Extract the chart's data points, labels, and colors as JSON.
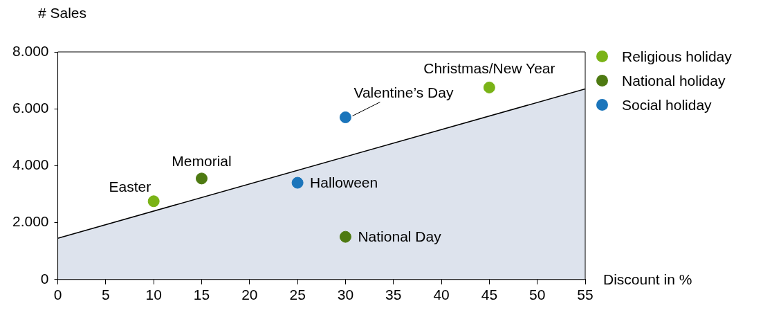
{
  "chart_data": {
    "type": "scatter",
    "xlabel": "Discount in %",
    "ylabel": "# Sales",
    "xlim": [
      0,
      55
    ],
    "xticks": [
      0,
      5,
      10,
      15,
      20,
      25,
      30,
      35,
      40,
      45,
      50,
      55
    ],
    "ylim": [
      0,
      8000
    ],
    "yticks": [
      {
        "value": 0,
        "label": "0"
      },
      {
        "value": 2000,
        "label": "2.000"
      },
      {
        "value": 4000,
        "label": "4.000"
      },
      {
        "value": 6000,
        "label": "6.000"
      },
      {
        "value": 8000,
        "label": "8.000"
      }
    ],
    "grid": false,
    "legend": "top right",
    "marker": "circle",
    "series": [
      {
        "type": "area",
        "marker": "none",
        "color": "#dde3ed",
        "x": [
          0,
          55
        ],
        "values": [
          1450,
          6700
        ]
      },
      {
        "name": "Religious holiday",
        "color": "#7ab317",
        "x": [
          10,
          45
        ],
        "values": [
          2750,
          6750
        ]
      },
      {
        "name": "National holiday",
        "color": "#4e7a12",
        "x": [
          15,
          30
        ],
        "values": [
          3550,
          1500
        ]
      },
      {
        "name": "Social holiday",
        "color": "#1b75bb",
        "x": [
          25,
          30
        ],
        "values": [
          3400,
          5700
        ]
      }
    ],
    "annotations": [
      {
        "text": "Easter",
        "x": 10,
        "y": 2750
      },
      {
        "text": "Memorial",
        "x": 15,
        "y": 3550
      },
      {
        "text": "Halloween",
        "x": 25,
        "y": 3400
      },
      {
        "text": "Valentine’s Day",
        "x": 30,
        "y": 5700
      },
      {
        "text": "National Day",
        "x": 30,
        "y": 1500
      },
      {
        "text": "Christmas/New Year",
        "x": 45,
        "y": 6750
      }
    ]
  }
}
